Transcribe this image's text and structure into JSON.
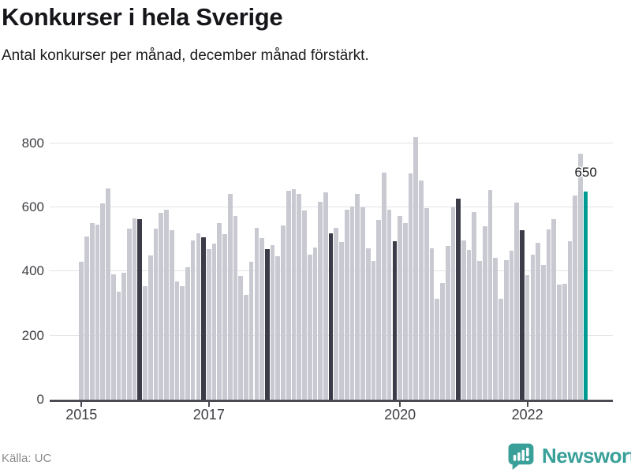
{
  "header": {
    "title": "Konkurser i hela Sverige",
    "subtitle": "Antal konkurser per månad, december månad förstärkt."
  },
  "footer": {
    "source": "Källa: UC",
    "brand": "Newsworthy",
    "logo_icon": "bar-chart-speech-bubble-icon"
  },
  "chart_data": {
    "type": "bar",
    "title": "Konkurser i hela Sverige",
    "subtitle": "Antal konkurser per månad, december månad förstärkt.",
    "xlabel": "",
    "ylabel": "Antal konkurser per månad",
    "grid": true,
    "y_ticks": [
      0,
      200,
      400,
      600,
      800
    ],
    "ylim": [
      0,
      840
    ],
    "x_tick_years": [
      2015,
      2017,
      2020,
      2022
    ],
    "highlight_note": "December bars rendered dark; final bar (dec 2022) teal with value label",
    "annotation": {
      "text": "650",
      "month_index": 95
    },
    "series": [
      {
        "year": 2015,
        "values": [
          430,
          510,
          550,
          545,
          613,
          660,
          391,
          336,
          395,
          535,
          566,
          564
        ]
      },
      {
        "year": 2016,
        "values": [
          354,
          451,
          535,
          584,
          594,
          530,
          370,
          355,
          414,
          496,
          520,
          506
        ]
      },
      {
        "year": 2017,
        "values": [
          471,
          486,
          550,
          517,
          643,
          572,
          387,
          328,
          430,
          536,
          504,
          469
        ]
      },
      {
        "year": 2018,
        "values": [
          481,
          447,
          543,
          652,
          656,
          642,
          590,
          453,
          476,
          617,
          648,
          519
        ]
      },
      {
        "year": 2019,
        "values": [
          537,
          491,
          594,
          602,
          642,
          601,
          473,
          432,
          560,
          709,
          594,
          494
        ]
      },
      {
        "year": 2020,
        "values": [
          572,
          551,
          705,
          820,
          683,
          597,
          473,
          314,
          364,
          479,
          601,
          627
        ]
      },
      {
        "year": 2021,
        "values": [
          498,
          467,
          586,
          434,
          541,
          654,
          444,
          314,
          436,
          465,
          616,
          528
        ]
      },
      {
        "year": 2022,
        "values": [
          388,
          453,
          490,
          420,
          532,
          564,
          358,
          362,
          494,
          636,
          767,
          650
        ]
      }
    ],
    "colors": {
      "bar": "#c9c9d2",
      "december_bar": "#3c3c48",
      "highlight_bar": "#009a92",
      "gridline": "#e4e4e9",
      "axis": "#4a4a52",
      "logo_teal": "#38a099"
    }
  }
}
